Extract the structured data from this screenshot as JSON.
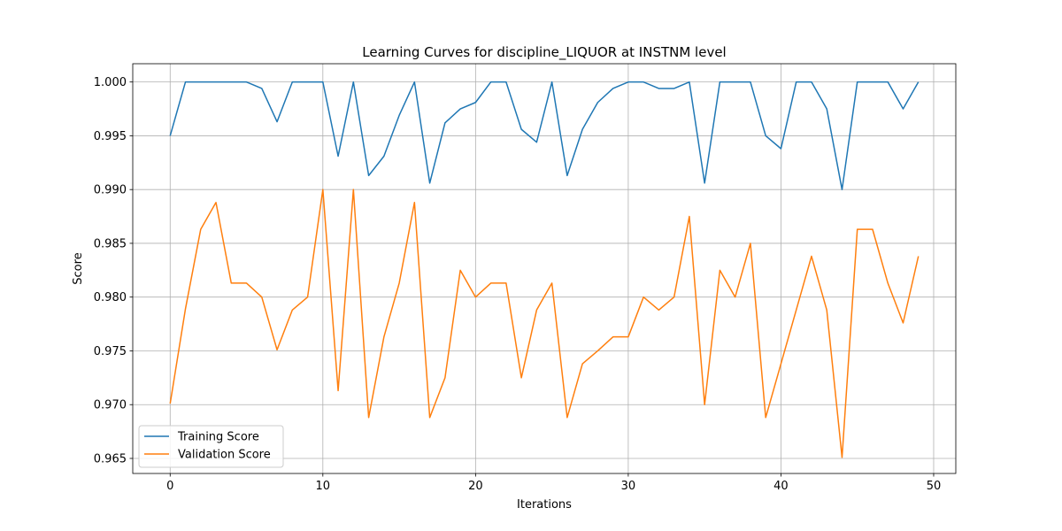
{
  "chart_data": {
    "type": "line",
    "title": "Learning Curves for discipline_LIQUOR at INSTNM level",
    "xlabel": "Iterations",
    "ylabel": "Score",
    "xlim": [
      -2.45,
      51.45
    ],
    "ylim": [
      0.9636,
      1.0017
    ],
    "x_ticks": [
      0,
      10,
      20,
      30,
      40,
      50
    ],
    "y_ticks": [
      0.965,
      0.97,
      0.975,
      0.98,
      0.985,
      0.99,
      0.995,
      1.0
    ],
    "x_tick_labels": [
      "0",
      "10",
      "20",
      "30",
      "40",
      "50"
    ],
    "y_tick_labels": [
      "0.965",
      "0.970",
      "0.975",
      "0.980",
      "0.985",
      "0.990",
      "0.995",
      "1.000"
    ],
    "grid": true,
    "legend_position": "lower-left",
    "x": [
      0,
      1,
      2,
      3,
      4,
      5,
      6,
      7,
      8,
      9,
      10,
      11,
      12,
      13,
      14,
      15,
      16,
      17,
      18,
      19,
      20,
      21,
      22,
      23,
      24,
      25,
      26,
      27,
      28,
      29,
      30,
      31,
      32,
      33,
      34,
      35,
      36,
      37,
      38,
      39,
      40,
      41,
      42,
      43,
      44,
      45,
      46,
      47,
      48,
      49
    ],
    "series": [
      {
        "name": "Training Score",
        "color": "#1f77b4",
        "values": [
          0.995,
          1.0,
          1.0,
          1.0,
          1.0,
          1.0,
          0.9994,
          0.9963,
          1.0,
          1.0,
          1.0,
          0.9931,
          1.0,
          0.9913,
          0.9931,
          0.9969,
          1.0,
          0.9906,
          0.9962,
          0.9975,
          0.9981,
          1.0,
          1.0,
          0.9956,
          0.9944,
          1.0,
          0.9913,
          0.9956,
          0.9981,
          0.9994,
          1.0,
          1.0,
          0.9994,
          0.9994,
          1.0,
          0.9906,
          1.0,
          1.0,
          1.0,
          0.995,
          0.9938,
          1.0,
          1.0,
          0.9975,
          0.99,
          1.0,
          1.0,
          1.0,
          0.9975,
          1.0
        ]
      },
      {
        "name": "Validation Score",
        "color": "#ff7f0e",
        "values": [
          0.9701,
          0.9789,
          0.9863,
          0.9888,
          0.9813,
          0.9813,
          0.98,
          0.9751,
          0.9788,
          0.98,
          0.99,
          0.9713,
          0.99,
          0.9688,
          0.9763,
          0.9813,
          0.9888,
          0.9688,
          0.9725,
          0.9825,
          0.98,
          0.9813,
          0.9813,
          0.9725,
          0.9788,
          0.9813,
          0.9688,
          0.9738,
          0.975,
          0.9763,
          0.9763,
          0.98,
          0.9788,
          0.98,
          0.9875,
          0.97,
          0.9825,
          0.98,
          0.985,
          0.9688,
          0.9738,
          0.9788,
          0.9838,
          0.9788,
          0.9651,
          0.9863,
          0.9863,
          0.9813,
          0.9776,
          0.9838
        ]
      }
    ]
  }
}
